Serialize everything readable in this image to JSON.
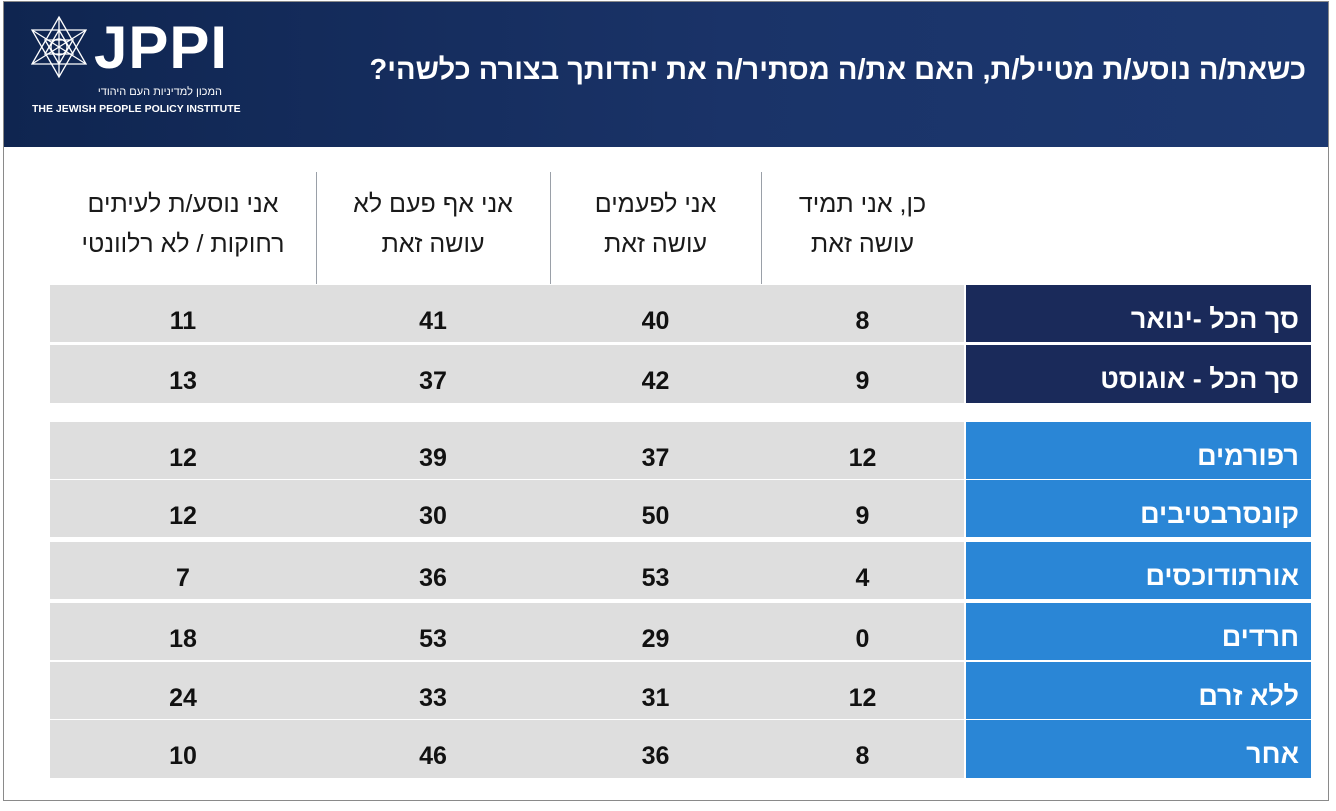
{
  "header": {
    "title": "כשאת/ה נוסע/ת מטייל/ת, האם את/ה מסתיר/ה את יהדותך בצורה כלשהי?",
    "logo": "JPPI",
    "logo_hebrew": "המכון למדיניות העם היהודי",
    "logo_english": "THE JEWISH PEOPLE POLICY INSTITUTE"
  },
  "colors": {
    "header_bg": "#1a3368",
    "label_dark": "#1a2a5a",
    "label_light": "#2a86d6",
    "cell_bg": "#dedede"
  },
  "chart_data": {
    "type": "table",
    "title": "כשאת/ה נוסע/ת מטייל/ת, האם את/ה מסתיר/ה את יהדותך בצורה כלשהי?",
    "columns": [
      {
        "line1": "כן, אני תמיד",
        "line2": "עושה זאת"
      },
      {
        "line1": "אני לפעמים",
        "line2": "עושה זאת"
      },
      {
        "line1": "אני אף פעם לא",
        "line2": "עושה זאת"
      },
      {
        "line1": "אני נוסע/ת לעיתים",
        "line2": "רחוקות / לא רלוונטי"
      }
    ],
    "rows": [
      {
        "label": "סך הכל -ינואר",
        "group": "total",
        "values": [
          8,
          40,
          41,
          11
        ]
      },
      {
        "label": "סך הכל - אוגוסט",
        "group": "total",
        "values": [
          9,
          42,
          37,
          13
        ]
      },
      {
        "label": "רפורמים",
        "group": "denomination",
        "values": [
          12,
          37,
          39,
          12
        ]
      },
      {
        "label": "קונסרבטיבים",
        "group": "denomination",
        "values": [
          9,
          50,
          30,
          12
        ]
      },
      {
        "label": "אורתודוכסים",
        "group": "denomination",
        "values": [
          4,
          53,
          36,
          7
        ]
      },
      {
        "label": "חרדים",
        "group": "denomination",
        "values": [
          0,
          29,
          53,
          18
        ]
      },
      {
        "label": "ללא זרם",
        "group": "denomination",
        "values": [
          12,
          31,
          33,
          24
        ]
      },
      {
        "label": "אחר",
        "group": "denomination",
        "values": [
          8,
          36,
          46,
          10
        ]
      }
    ]
  }
}
